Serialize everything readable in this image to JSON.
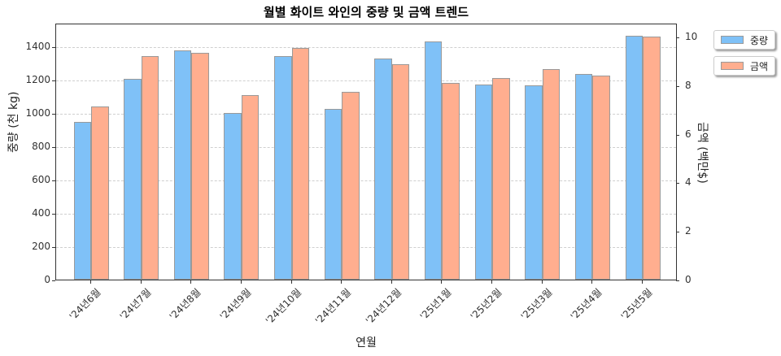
{
  "chart_data": {
    "type": "bar",
    "title": "월별 화이트 와인의 중량 및 금액 트렌드",
    "xlabel": "연월",
    "ylabel": "중량 (천 kg)",
    "ylabel_right": "금액 (백만$)",
    "categories": [
      "'24년6월",
      "'24년7월",
      "'24년8월",
      "'24년9월",
      "'24년10월",
      "'24년11월",
      "'24년12월",
      "'25년1월",
      "'25년2월",
      "'25년3월",
      "'25년4월",
      "'25년5월"
    ],
    "series": [
      {
        "name": "중량",
        "axis": "left",
        "color": "#7fc1f7",
        "values": [
          946,
          1207,
          1374,
          1000,
          1343,
          1026,
          1328,
          1428,
          1171,
          1166,
          1237,
          1465
        ]
      },
      {
        "name": "금액",
        "axis": "right",
        "color": "#ffae8f",
        "values": [
          7.13,
          9.2,
          9.33,
          7.6,
          9.53,
          7.73,
          8.85,
          8.08,
          8.3,
          8.68,
          8.38,
          10.0
        ]
      }
    ],
    "ylim": [
      0,
      1542
    ],
    "ylim_right": [
      0,
      10.57
    ],
    "yticks": [
      0,
      200,
      400,
      600,
      800,
      1000,
      1200,
      1400
    ],
    "yticks_right": [
      0,
      2,
      4,
      6,
      8,
      10
    ],
    "grid": "horizontal dashed",
    "legend_position": "upper right, outside plot"
  },
  "legend": [
    {
      "label": "중량",
      "color": "#7fc1f7"
    },
    {
      "label": "금액",
      "color": "#ffae8f"
    }
  ]
}
